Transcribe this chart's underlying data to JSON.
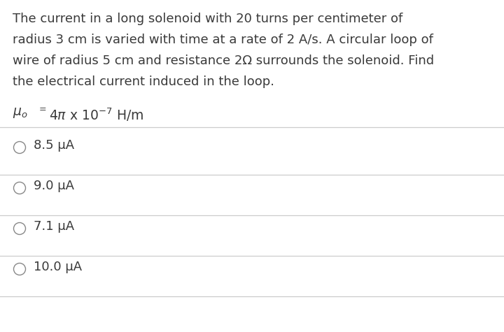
{
  "background_color": "#ffffff",
  "question_text_lines": [
    "The current in a long solenoid with 20 turns per centimeter of",
    "radius 3 cm is varied with time at a rate of 2 A/s. A circular loop of",
    "wire of radius 5 cm and resistance 2Ω surrounds the solenoid. Find",
    "the electrical current induced in the loop."
  ],
  "choices": [
    "8.5 μA",
    "9.0 μA",
    "7.1 μA",
    "10.0 μA"
  ],
  "text_color": "#3a3a3a",
  "circle_color": "#888888",
  "line_color": "#cccccc",
  "question_fontsize": 13.0,
  "given_fontsize": 13.5,
  "choice_fontsize": 13.0
}
